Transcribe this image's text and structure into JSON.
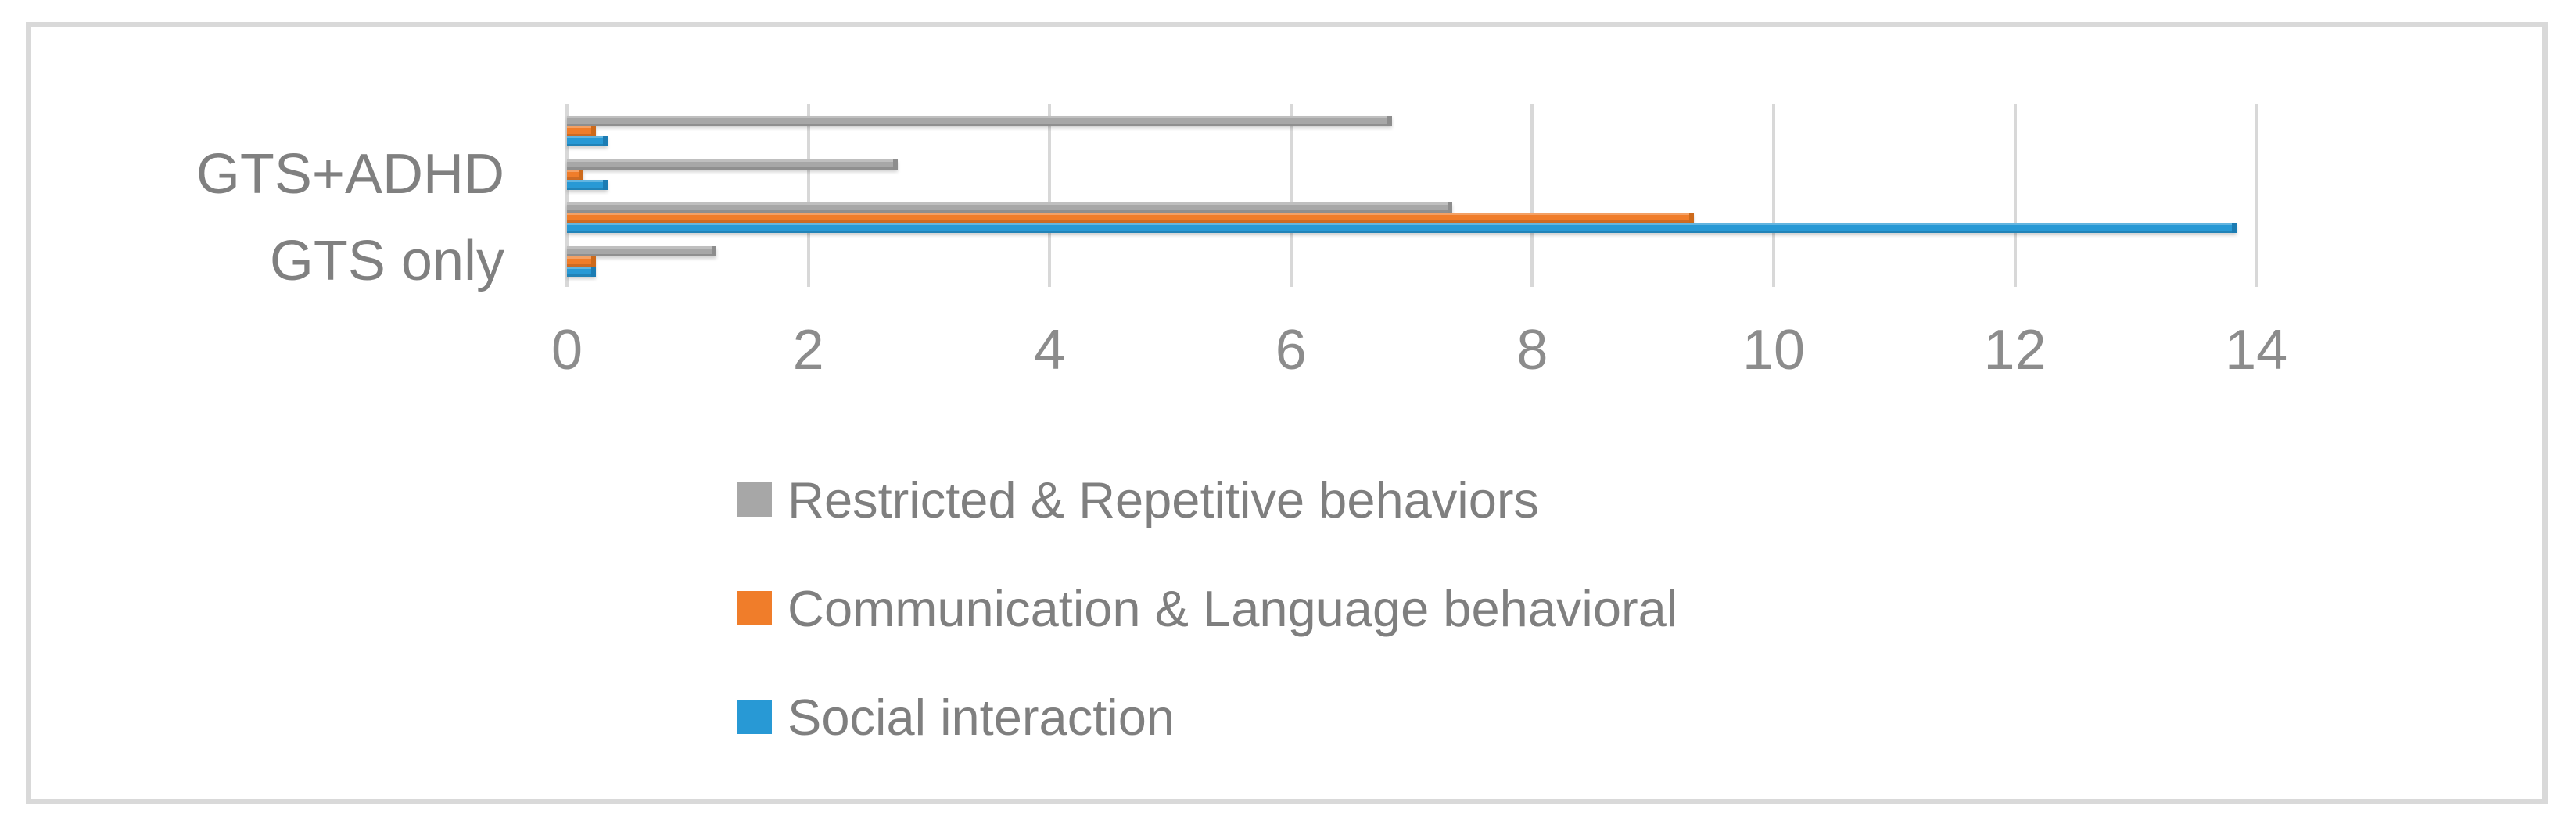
{
  "figure": {
    "background": "#FFFFFF",
    "border_color": "#D9D9D9"
  },
  "chart_data": {
    "type": "bar",
    "orientation": "horizontal",
    "title": "",
    "xlabel": "",
    "ylabel": "",
    "xlim": [
      0,
      14
    ],
    "xticks": [
      0,
      2,
      4,
      6,
      8,
      10,
      12,
      14
    ],
    "grid": true,
    "legend_position": "bottom-left",
    "categories": [
      "",
      "GTS+ADHD",
      "",
      "GTS only"
    ],
    "category_order_note": "top to bottom",
    "series": [
      {
        "name": "Restricted & Repetitive behaviors",
        "color": "#A7A7A7",
        "edge_color": "#8D8D8D",
        "values": [
          6.8,
          2.7,
          7.3,
          1.2
        ]
      },
      {
        "name": "Communication & Language behavioral",
        "color": "#F07D2A",
        "edge_color": "#CD6A1B",
        "values": [
          0.2,
          0.1,
          9.3,
          0.2
        ]
      },
      {
        "name": "Social interaction",
        "color": "#2899D5",
        "edge_color": "#1C7CB3",
        "values": [
          0.3,
          0.3,
          13.8,
          0.2
        ]
      }
    ],
    "colors": {
      "gridline": "#D8D8D8",
      "tick_text": "#8C8C8C",
      "category_text": "#808080",
      "legend_text": "#7F7F7F"
    }
  }
}
